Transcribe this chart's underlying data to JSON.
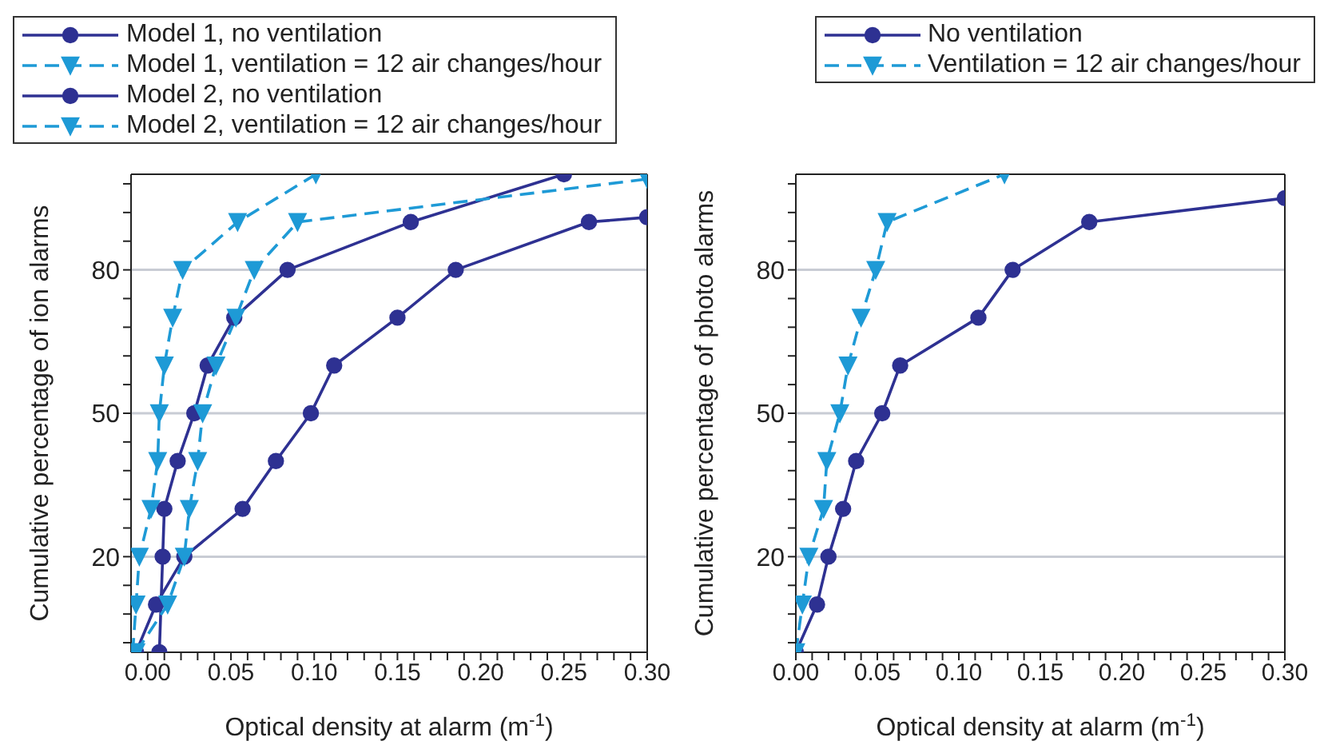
{
  "chart_data": [
    {
      "type": "line",
      "xlabel": "Optical density at alarm (m$^{-1}$)",
      "ylabel": "Cumulative percentage of ion alarms",
      "xlim": [
        -0.01,
        0.3
      ],
      "ylim": [
        0,
        100
      ],
      "xticks": [
        {
          "value": 0,
          "label": "0.00"
        },
        {
          "value": 0.01,
          "label": null
        },
        {
          "value": 0.02,
          "label": null
        },
        {
          "value": 0.03,
          "label": null
        },
        {
          "value": 0.04,
          "label": null
        },
        {
          "value": 0.05,
          "label": "0.05"
        },
        {
          "value": 0.06,
          "label": null
        },
        {
          "value": 0.07,
          "label": null
        },
        {
          "value": 0.08,
          "label": null
        },
        {
          "value": 0.09,
          "label": null
        },
        {
          "value": 0.1,
          "label": "0.10"
        },
        {
          "value": 0.11,
          "label": null
        },
        {
          "value": 0.12,
          "label": null
        },
        {
          "value": 0.13,
          "label": null
        },
        {
          "value": 0.14,
          "label": null
        },
        {
          "value": 0.15,
          "label": "0.15"
        },
        {
          "value": 0.16,
          "label": null
        },
        {
          "value": 0.17,
          "label": null
        },
        {
          "value": 0.18,
          "label": null
        },
        {
          "value": 0.19,
          "label": null
        },
        {
          "value": 0.2,
          "label": "0.20"
        },
        {
          "value": 0.21,
          "label": null
        },
        {
          "value": 0.22,
          "label": null
        },
        {
          "value": 0.23,
          "label": null
        },
        {
          "value": 0.24,
          "label": null
        },
        {
          "value": 0.25,
          "label": "0.25"
        },
        {
          "value": 0.26,
          "label": null
        },
        {
          "value": 0.27,
          "label": null
        },
        {
          "value": 0.28,
          "label": null
        },
        {
          "value": 0.29,
          "label": null
        },
        {
          "value": 0.3,
          "label": "0.30"
        }
      ],
      "yticks": [
        {
          "value": 2,
          "label": null
        },
        {
          "value": 8,
          "label": null
        },
        {
          "value": 14,
          "label": null
        },
        20,
        {
          "value": 26,
          "label": null
        },
        {
          "value": 32,
          "label": null
        },
        {
          "value": 38,
          "label": null
        },
        {
          "value": 44,
          "label": null
        },
        50,
        {
          "value": 56,
          "label": null
        },
        {
          "value": 62,
          "label": null
        },
        {
          "value": 68,
          "label": null
        },
        {
          "value": 74,
          "label": null
        },
        80,
        {
          "value": 86,
          "label": null
        },
        {
          "value": 92,
          "label": null
        },
        {
          "value": 98,
          "label": null
        }
      ],
      "grid": "y",
      "legend": "top left",
      "series": [
        {
          "name": "Model 1, no ventilation",
          "color": "#2e3192",
          "marker": "circle",
          "line_style": "solid",
          "x": [
            0.007,
            0.009,
            0.01,
            0.018,
            0.028,
            0.036,
            0.052,
            0.084,
            0.158,
            0.25
          ],
          "values": [
            0,
            20,
            30,
            40,
            50,
            60,
            70,
            80,
            90,
            100
          ]
        },
        {
          "name": "Model 1, ventilation = 12 air changes/hour",
          "color": "#1e9ad6",
          "marker": "triangle",
          "line_style": "dashed",
          "x": [
            -0.009,
            -0.007,
            -0.005,
            0.002,
            0.006,
            0.007,
            0.01,
            0.015,
            0.021,
            0.054,
            0.101
          ],
          "values": [
            0,
            10,
            20,
            30,
            40,
            50,
            60,
            70,
            80,
            90,
            100
          ]
        },
        {
          "name": "Model 2, no ventilation",
          "color": "#2e3192",
          "marker": "circle",
          "line_style": "solid",
          "x": [
            -0.007,
            0.005,
            0.022,
            0.057,
            0.077,
            0.098,
            0.112,
            0.15,
            0.185,
            0.265,
            0.3
          ],
          "values": [
            0,
            10,
            20,
            30,
            40,
            50,
            60,
            70,
            80,
            90,
            91
          ]
        },
        {
          "name": "Model 2, ventilation = 12 air changes/hour",
          "color": "#1e9ad6",
          "marker": "triangle",
          "line_style": "dashed",
          "x": [
            -0.007,
            0.012,
            0.022,
            0.025,
            0.03,
            0.033,
            0.041,
            0.053,
            0.064,
            0.09,
            0.3
          ],
          "values": [
            0,
            10,
            20,
            30,
            40,
            50,
            60,
            70,
            80,
            90,
            99
          ]
        }
      ]
    },
    {
      "type": "line",
      "xlabel": "Optical density at alarm (m$^{-1}$)",
      "ylabel": "Cumulative percentage of photo alarms",
      "xlim": [
        0,
        0.3
      ],
      "ylim": [
        0,
        100
      ],
      "xticks": [
        {
          "value": 0,
          "label": "0.00"
        },
        {
          "value": 0.01,
          "label": null
        },
        {
          "value": 0.02,
          "label": null
        },
        {
          "value": 0.03,
          "label": null
        },
        {
          "value": 0.04,
          "label": null
        },
        {
          "value": 0.05,
          "label": "0.05"
        },
        {
          "value": 0.06,
          "label": null
        },
        {
          "value": 0.07,
          "label": null
        },
        {
          "value": 0.08,
          "label": null
        },
        {
          "value": 0.09,
          "label": null
        },
        {
          "value": 0.1,
          "label": "0.10"
        },
        {
          "value": 0.11,
          "label": null
        },
        {
          "value": 0.12,
          "label": null
        },
        {
          "value": 0.13,
          "label": null
        },
        {
          "value": 0.14,
          "label": null
        },
        {
          "value": 0.15,
          "label": "0.15"
        },
        {
          "value": 0.16,
          "label": null
        },
        {
          "value": 0.17,
          "label": null
        },
        {
          "value": 0.18,
          "label": null
        },
        {
          "value": 0.19,
          "label": null
        },
        {
          "value": 0.2,
          "label": "0.20"
        },
        {
          "value": 0.21,
          "label": null
        },
        {
          "value": 0.22,
          "label": null
        },
        {
          "value": 0.23,
          "label": null
        },
        {
          "value": 0.24,
          "label": null
        },
        {
          "value": 0.25,
          "label": "0.25"
        },
        {
          "value": 0.26,
          "label": null
        },
        {
          "value": 0.27,
          "label": null
        },
        {
          "value": 0.28,
          "label": null
        },
        {
          "value": 0.29,
          "label": null
        },
        {
          "value": 0.3,
          "label": "0.30"
        }
      ],
      "yticks": [
        {
          "value": 2,
          "label": null
        },
        {
          "value": 8,
          "label": null
        },
        {
          "value": 14,
          "label": null
        },
        20,
        {
          "value": 26,
          "label": null
        },
        {
          "value": 32,
          "label": null
        },
        {
          "value": 38,
          "label": null
        },
        {
          "value": 44,
          "label": null
        },
        50,
        {
          "value": 56,
          "label": null
        },
        {
          "value": 62,
          "label": null
        },
        {
          "value": 68,
          "label": null
        },
        {
          "value": 74,
          "label": null
        },
        80,
        {
          "value": 86,
          "label": null
        },
        {
          "value": 92,
          "label": null
        },
        {
          "value": 98,
          "label": null
        }
      ],
      "grid": "y",
      "legend": "top right",
      "series": [
        {
          "name": "No ventilation",
          "color": "#2e3192",
          "marker": "circle",
          "line_style": "solid",
          "x": [
            0,
            0.013,
            0.02,
            0.029,
            0.037,
            0.053,
            0.064,
            0.112,
            0.133,
            0.18,
            0.3
          ],
          "values": [
            0,
            10,
            20,
            30,
            40,
            50,
            60,
            70,
            80,
            90,
            95
          ]
        },
        {
          "name": "Ventilation = 12 air changes/hour",
          "color": "#1e9ad6",
          "marker": "triangle",
          "line_style": "dashed",
          "x": [
            0,
            0.004,
            0.008,
            0.017,
            0.019,
            0.027,
            0.032,
            0.04,
            0.049,
            0.056,
            0.128
          ],
          "values": [
            0,
            10,
            20,
            30,
            40,
            50,
            60,
            70,
            80,
            90,
            100
          ]
        }
      ]
    }
  ]
}
